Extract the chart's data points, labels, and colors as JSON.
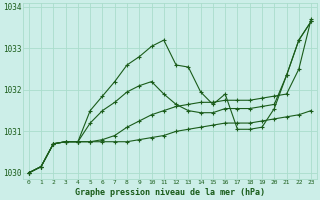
{
  "title": "Graphe pression niveau de la mer (hPa)",
  "background_color": "#cceee8",
  "grid_color": "#aaddcc",
  "line_color": "#1a5c1a",
  "label_color": "#1a5c1a",
  "hours": [
    0,
    1,
    2,
    3,
    4,
    5,
    6,
    7,
    8,
    9,
    10,
    11,
    12,
    13,
    14,
    15,
    16,
    17,
    18,
    19,
    20,
    21,
    22,
    23
  ],
  "series": [
    [
      1030.0,
      1030.15,
      1030.7,
      1030.75,
      1030.75,
      1030.75,
      1030.75,
      1030.75,
      1030.75,
      1030.8,
      1030.85,
      1030.9,
      1031.0,
      1031.05,
      1031.1,
      1031.15,
      1031.2,
      1031.2,
      1031.2,
      1031.25,
      1031.3,
      1031.35,
      1031.4,
      1031.5
    ],
    [
      1030.0,
      1030.15,
      1030.7,
      1030.75,
      1030.75,
      1030.75,
      1030.8,
      1030.9,
      1031.1,
      1031.25,
      1031.4,
      1031.5,
      1031.6,
      1031.65,
      1031.7,
      1031.7,
      1031.75,
      1031.75,
      1031.75,
      1031.8,
      1031.85,
      1031.9,
      1032.5,
      1033.7
    ],
    [
      1030.0,
      1030.15,
      1030.7,
      1030.75,
      1030.75,
      1031.2,
      1031.5,
      1031.7,
      1031.95,
      1032.1,
      1032.2,
      1031.9,
      1031.65,
      1031.5,
      1031.45,
      1031.45,
      1031.55,
      1031.55,
      1031.55,
      1031.6,
      1031.65,
      1032.35,
      1033.2,
      1033.65
    ],
    [
      1030.0,
      1030.15,
      1030.7,
      1030.75,
      1030.75,
      1031.5,
      1031.85,
      1032.2,
      1032.6,
      1032.8,
      1033.05,
      1033.2,
      1032.6,
      1032.55,
      1031.95,
      1031.65,
      1031.9,
      1031.05,
      1031.05,
      1031.1,
      1031.55,
      1032.35,
      1033.2,
      1033.65
    ]
  ],
  "ylim": [
    1029.85,
    1034.1
  ],
  "yticks": [
    1030,
    1031,
    1032,
    1033,
    1034
  ],
  "xtick_labels": [
    "0",
    "1",
    "2",
    "3",
    "4",
    "5",
    "6",
    "7",
    "8",
    "9",
    "10",
    "11",
    "12",
    "13",
    "14",
    "15",
    "16",
    "17",
    "18",
    "19",
    "20",
    "21",
    "22",
    "23"
  ],
  "markersize": 3,
  "linewidth": 0.8
}
